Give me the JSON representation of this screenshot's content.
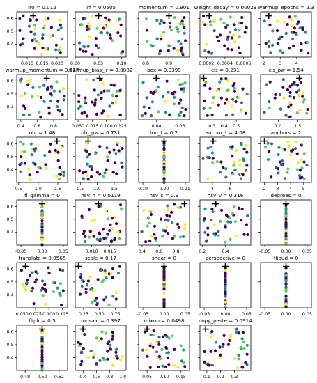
{
  "chart_data": [
    {
      "title": "lr0 = 0.012",
      "type": "scatter",
      "xlim": [
        0.0065,
        0.0235
      ],
      "ylim": [
        0.3,
        0.65
      ],
      "xticks": [
        0.01,
        0.015,
        0.02
      ],
      "xtick_labels": [
        "0.010",
        "0.015",
        "0.020"
      ],
      "yticks": [
        0.4,
        0.5,
        0.6
      ],
      "ytick_labels": [
        "0.4",
        "0.5",
        "0.6"
      ],
      "best": [
        0.012,
        0.62
      ]
    },
    {
      "title": "lrf = 0.0505",
      "type": "scatter",
      "xlim": [
        0.0,
        0.11
      ],
      "ylim": [
        0.3,
        0.65
      ],
      "xticks": [
        0.0,
        0.05,
        0.1
      ],
      "xtick_labels": [
        "0.00",
        "0.05",
        "0.10"
      ],
      "yticks": [
        0.4,
        0.5,
        0.6
      ],
      "ytick_labels": [
        "",
        "",
        ""
      ],
      "best": [
        0.0505,
        0.62
      ]
    },
    {
      "title": "momentum = 0.901",
      "type": "scatter",
      "xlim": [
        0.77,
        0.99
      ],
      "ylim": [
        0.3,
        0.65
      ],
      "xticks": [
        0.8,
        0.9
      ],
      "xtick_labels": [
        "0.8",
        "0.9"
      ],
      "yticks": [
        0.4,
        0.5,
        0.6
      ],
      "ytick_labels": [
        "",
        "",
        ""
      ],
      "best": [
        0.901,
        0.62
      ]
    },
    {
      "title": "weight_decay = 0.00023",
      "type": "scatter",
      "xlim": [
        0.00013,
        0.00068
      ],
      "ylim": [
        0.3,
        0.65
      ],
      "xticks": [
        0.0002,
        0.0004,
        0.0006
      ],
      "xtick_labels": [
        "0.0002",
        "0.0004",
        "0.0006"
      ],
      "yticks": [
        0.4,
        0.5,
        0.6
      ],
      "ytick_labels": [
        "",
        "",
        ""
      ],
      "best": [
        0.00023,
        0.62
      ]
    },
    {
      "title": "warmup_epochs = 2.3",
      "type": "scatter",
      "xlim": [
        1.8,
        4.9
      ],
      "ylim": [
        0.3,
        0.65
      ],
      "xticks": [
        2,
        3,
        4
      ],
      "xtick_labels": [
        "2",
        "3",
        "4"
      ],
      "yticks": [
        0.4,
        0.5,
        0.6
      ],
      "ytick_labels": [
        "",
        "",
        ""
      ],
      "best": [
        2.3,
        0.62
      ]
    },
    {
      "title": "warmup_momentum = 0.717",
      "type": "scatter",
      "xlim": [
        0.35,
        0.97
      ],
      "ylim": [
        0.3,
        0.65
      ],
      "xticks": [
        0.4,
        0.6,
        0.8
      ],
      "xtick_labels": [
        "0.4",
        "0.6",
        "0.8"
      ],
      "yticks": [
        0.4,
        0.5,
        0.6
      ],
      "ytick_labels": [
        "0.4",
        "0.5",
        "0.6"
      ],
      "best": [
        0.717,
        0.62
      ]
    },
    {
      "title": "warmup_bias_lr = 0.0882",
      "type": "scatter",
      "xlim": [
        0.045,
        0.135
      ],
      "ylim": [
        0.3,
        0.65
      ],
      "xticks": [
        0.05,
        0.075,
        0.1,
        0.125
      ],
      "xtick_labels": [
        "0.050",
        "0.075",
        "0.100",
        "0.125"
      ],
      "yticks": [
        0.4,
        0.5,
        0.6
      ],
      "ytick_labels": [
        "",
        "",
        ""
      ],
      "best": [
        0.0882,
        0.62
      ]
    },
    {
      "title": "box = 0.0399",
      "type": "scatter",
      "xlim": [
        0.025,
        0.068
      ],
      "ylim": [
        0.3,
        0.65
      ],
      "xticks": [
        0.04,
        0.06
      ],
      "xtick_labels": [
        "0.04",
        "0.06"
      ],
      "yticks": [
        0.4,
        0.5,
        0.6
      ],
      "ytick_labels": [
        "",
        "",
        ""
      ],
      "best": [
        0.0399,
        0.62
      ]
    },
    {
      "title": "cls = 0.231",
      "type": "scatter",
      "xlim": [
        0.2,
        0.62
      ],
      "ylim": [
        0.3,
        0.65
      ],
      "xticks": [
        0.3,
        0.4,
        0.5
      ],
      "xtick_labels": [
        "0.3",
        "0.4",
        "0.5"
      ],
      "yticks": [
        0.4,
        0.5,
        0.6
      ],
      "ytick_labels": [
        "",
        "",
        ""
      ],
      "best": [
        0.231,
        0.62
      ]
    },
    {
      "title": "cls_pw = 1.54",
      "type": "scatter",
      "xlim": [
        0.55,
        1.85
      ],
      "ylim": [
        0.3,
        0.65
      ],
      "xticks": [
        1.0,
        1.5
      ],
      "xtick_labels": [
        "1.0",
        "1.5"
      ],
      "yticks": [
        0.4,
        0.5,
        0.6
      ],
      "ytick_labels": [
        "",
        "",
        ""
      ],
      "best": [
        1.54,
        0.62
      ]
    },
    {
      "title": "obj = 1.48",
      "type": "scatter",
      "xlim": [
        0.45,
        1.75
      ],
      "ylim": [
        0.3,
        0.65
      ],
      "xticks": [
        0.5,
        1.0,
        1.5
      ],
      "xtick_labels": [
        "0.5",
        "1.0",
        "1.5"
      ],
      "yticks": [
        0.4,
        0.5,
        0.6
      ],
      "ytick_labels": [
        "0.4",
        "0.5",
        "0.6"
      ],
      "best": [
        1.48,
        0.62
      ]
    },
    {
      "title": "obj_pw = 0.731",
      "type": "scatter",
      "xlim": [
        0.35,
        1.85
      ],
      "ylim": [
        0.3,
        0.65
      ],
      "xticks": [
        0.5,
        1.0,
        1.5
      ],
      "xtick_labels": [
        "0.5",
        "1.0",
        "1.5"
      ],
      "yticks": [
        0.4,
        0.5,
        0.6
      ],
      "ytick_labels": [
        "",
        "",
        ""
      ],
      "best": [
        0.731,
        0.62
      ]
    },
    {
      "title": "iou_t = 0.2",
      "type": "scatter",
      "xlim": [
        0.188,
        0.212
      ],
      "ylim": [
        0.3,
        0.65
      ],
      "xticks": [
        0.19,
        0.2,
        0.21
      ],
      "xtick_labels": [
        "0.19",
        "0.20",
        "0.21"
      ],
      "yticks": [
        0.4,
        0.5,
        0.6
      ],
      "ytick_labels": [
        "",
        "",
        ""
      ],
      "best": [
        0.2,
        0.62
      ]
    },
    {
      "title": "anchor_t = 4.08",
      "type": "scatter",
      "xlim": [
        2.6,
        8.3
      ],
      "ylim": [
        0.3,
        0.65
      ],
      "xticks": [
        4,
        6
      ],
      "xtick_labels": [
        "4",
        "6"
      ],
      "yticks": [
        0.4,
        0.5,
        0.6
      ],
      "ytick_labels": [
        "",
        "",
        ""
      ],
      "best": [
        4.08,
        0.62
      ]
    },
    {
      "title": "anchors = 2",
      "type": "scatter",
      "xlim": [
        1.7,
        5.6
      ],
      "ylim": [
        0.3,
        0.65
      ],
      "xticks": [
        2,
        3,
        4,
        5
      ],
      "xtick_labels": [
        "2",
        "3",
        "4",
        "5"
      ],
      "yticks": [
        0.4,
        0.5,
        0.6
      ],
      "ytick_labels": [
        "",
        "",
        ""
      ],
      "best": [
        2,
        0.62
      ]
    },
    {
      "title": "fl_gamma = 0",
      "type": "scatter",
      "xlim": [
        -0.06,
        0.06
      ],
      "ylim": [
        0.3,
        0.65
      ],
      "xticks": [
        -0.05,
        0.0,
        0.05
      ],
      "xtick_labels": [
        "-0.05",
        "0.00",
        "0.05"
      ],
      "yticks": [
        0.4,
        0.5,
        0.6
      ],
      "ytick_labels": [
        "0.4",
        "0.5",
        "0.6"
      ],
      "best": [
        0,
        0.62
      ]
    },
    {
      "title": "hsv_h = 0.0119",
      "type": "scatter",
      "xlim": [
        0.0055,
        0.0195
      ],
      "ylim": [
        0.3,
        0.65
      ],
      "xticks": [
        0.01,
        0.015
      ],
      "xtick_labels": [
        "0.010",
        "0.015"
      ],
      "yticks": [
        0.4,
        0.5,
        0.6
      ],
      "ytick_labels": [
        "",
        "",
        ""
      ],
      "best": [
        0.0119,
        0.62
      ]
    },
    {
      "title": "hsv_s = 0.9",
      "type": "scatter",
      "xlim": [
        0.36,
        0.96
      ],
      "ylim": [
        0.3,
        0.65
      ],
      "xticks": [
        0.4,
        0.6,
        0.8
      ],
      "xtick_labels": [
        "0.4",
        "0.6",
        "0.8"
      ],
      "yticks": [
        0.4,
        0.5,
        0.6
      ],
      "ytick_labels": [
        "",
        "",
        ""
      ],
      "best": [
        0.9,
        0.62
      ]
    },
    {
      "title": "hsv_v = 0.316",
      "type": "scatter",
      "xlim": [
        0.18,
        0.62
      ],
      "ylim": [
        0.3,
        0.65
      ],
      "xticks": [
        0.2,
        0.4
      ],
      "xtick_labels": [
        "0.2",
        "0.4"
      ],
      "yticks": [
        0.4,
        0.5,
        0.6
      ],
      "ytick_labels": [
        "",
        "",
        ""
      ],
      "best": [
        0.316,
        0.62
      ]
    },
    {
      "title": "degrees = 0",
      "type": "scatter",
      "xlim": [
        -0.06,
        0.06
      ],
      "ylim": [
        0.3,
        0.65
      ],
      "xticks": [
        -0.05,
        0.0,
        0.05
      ],
      "xtick_labels": [
        "-0.05",
        "0.00",
        "0.05"
      ],
      "yticks": [
        0.4,
        0.5,
        0.6
      ],
      "ytick_labels": [
        "",
        "",
        ""
      ],
      "best": [
        0,
        0.62
      ]
    },
    {
      "title": "translate = 0.0565",
      "type": "scatter",
      "xlim": [
        0.04,
        0.135
      ],
      "ylim": [
        0.3,
        0.65
      ],
      "xticks": [
        0.05,
        0.075,
        0.1,
        0.125
      ],
      "xtick_labels": [
        "0.050",
        "0.075",
        "0.100",
        "0.125"
      ],
      "yticks": [
        0.4,
        0.5,
        0.6
      ],
      "ytick_labels": [
        "0.4",
        "0.5",
        "0.6"
      ],
      "best": [
        0.0565,
        0.62
      ]
    },
    {
      "title": "scale = 0.17",
      "type": "scatter",
      "xlim": [
        0.12,
        0.92
      ],
      "ylim": [
        0.3,
        0.65
      ],
      "xticks": [
        0.25,
        0.5,
        0.75
      ],
      "xtick_labels": [
        "0.25",
        "0.50",
        "0.75"
      ],
      "yticks": [
        0.4,
        0.5,
        0.6
      ],
      "ytick_labels": [
        "",
        "",
        ""
      ],
      "best": [
        0.17,
        0.62
      ]
    },
    {
      "title": "shear = 0",
      "type": "scatter",
      "xlim": [
        -0.06,
        0.06
      ],
      "ylim": [
        0.3,
        0.65
      ],
      "xticks": [
        -0.05,
        0.0,
        0.05
      ],
      "xtick_labels": [
        "-0.05",
        "0.00",
        "0.05"
      ],
      "yticks": [
        0.4,
        0.5,
        0.6
      ],
      "ytick_labels": [
        "",
        "",
        ""
      ],
      "best": [
        0,
        0.62
      ]
    },
    {
      "title": "perspective = 0",
      "type": "scatter",
      "xlim": [
        -0.06,
        0.06
      ],
      "ylim": [
        0.3,
        0.65
      ],
      "xticks": [
        -0.05,
        0.0,
        0.05
      ],
      "xtick_labels": [
        "-0.05",
        "0.00",
        "0.05"
      ],
      "yticks": [
        0.4,
        0.5,
        0.6
      ],
      "ytick_labels": [
        "",
        "",
        ""
      ],
      "best": [
        0,
        0.62
      ]
    },
    {
      "title": "flipud = 0",
      "type": "scatter",
      "xlim": [
        -0.06,
        0.06
      ],
      "ylim": [
        0.3,
        0.65
      ],
      "xticks": [
        -0.05,
        0.0,
        0.05
      ],
      "xtick_labels": [
        "-0.05",
        "0.00",
        "0.05"
      ],
      "yticks": [
        0.4,
        0.5,
        0.6
      ],
      "ytick_labels": [
        "",
        "",
        ""
      ],
      "best": [
        0,
        0.62
      ]
    },
    {
      "title": "fliplr = 0.5",
      "type": "scatter",
      "xlim": [
        0.47,
        0.53
      ],
      "ylim": [
        0.3,
        0.65
      ],
      "xticks": [
        0.48,
        0.5,
        0.52
      ],
      "xtick_labels": [
        "0.48",
        "0.50",
        "0.52"
      ],
      "yticks": [
        0.4,
        0.5,
        0.6
      ],
      "ytick_labels": [
        "0.4",
        "0.5",
        "0.6"
      ],
      "best": [
        0.5,
        0.62
      ]
    },
    {
      "title": "mosaic = 0.397",
      "type": "scatter",
      "xlim": [
        0.28,
        1.05
      ],
      "ylim": [
        0.3,
        0.65
      ],
      "xticks": [
        0.4,
        0.6,
        0.8,
        1.0
      ],
      "xtick_labels": [
        "0.4",
        "0.6",
        "0.8",
        "1.0"
      ],
      "yticks": [
        0.4,
        0.5,
        0.6
      ],
      "ytick_labels": [
        "",
        "",
        ""
      ],
      "best": [
        0.397,
        0.62
      ]
    },
    {
      "title": "mixup = 0.0498",
      "type": "scatter",
      "xlim": [
        0.025,
        0.175
      ],
      "ylim": [
        0.3,
        0.65
      ],
      "xticks": [
        0.05,
        0.1,
        0.15
      ],
      "xtick_labels": [
        "0.05",
        "0.10",
        "0.15"
      ],
      "yticks": [
        0.4,
        0.5,
        0.6
      ],
      "ytick_labels": [
        "",
        "",
        ""
      ],
      "best": [
        0.0498,
        0.62
      ]
    },
    {
      "title": "copy_paste = 0.0914",
      "type": "scatter",
      "xlim": [
        0.05,
        0.42
      ],
      "ylim": [
        0.3,
        0.65
      ],
      "xticks": [
        0.1,
        0.2,
        0.3
      ],
      "xtick_labels": [
        "0.1",
        "0.2",
        "0.3"
      ],
      "yticks": [
        0.4,
        0.5,
        0.6
      ],
      "ytick_labels": [
        "",
        "",
        ""
      ],
      "best": [
        0.0914,
        0.62
      ]
    }
  ],
  "colors": {
    "low": "#440154",
    "mid": "#31688e",
    "teal": "#21918c",
    "green": "#5ec962",
    "high": "#fde725",
    "best_marker": "#000000"
  }
}
